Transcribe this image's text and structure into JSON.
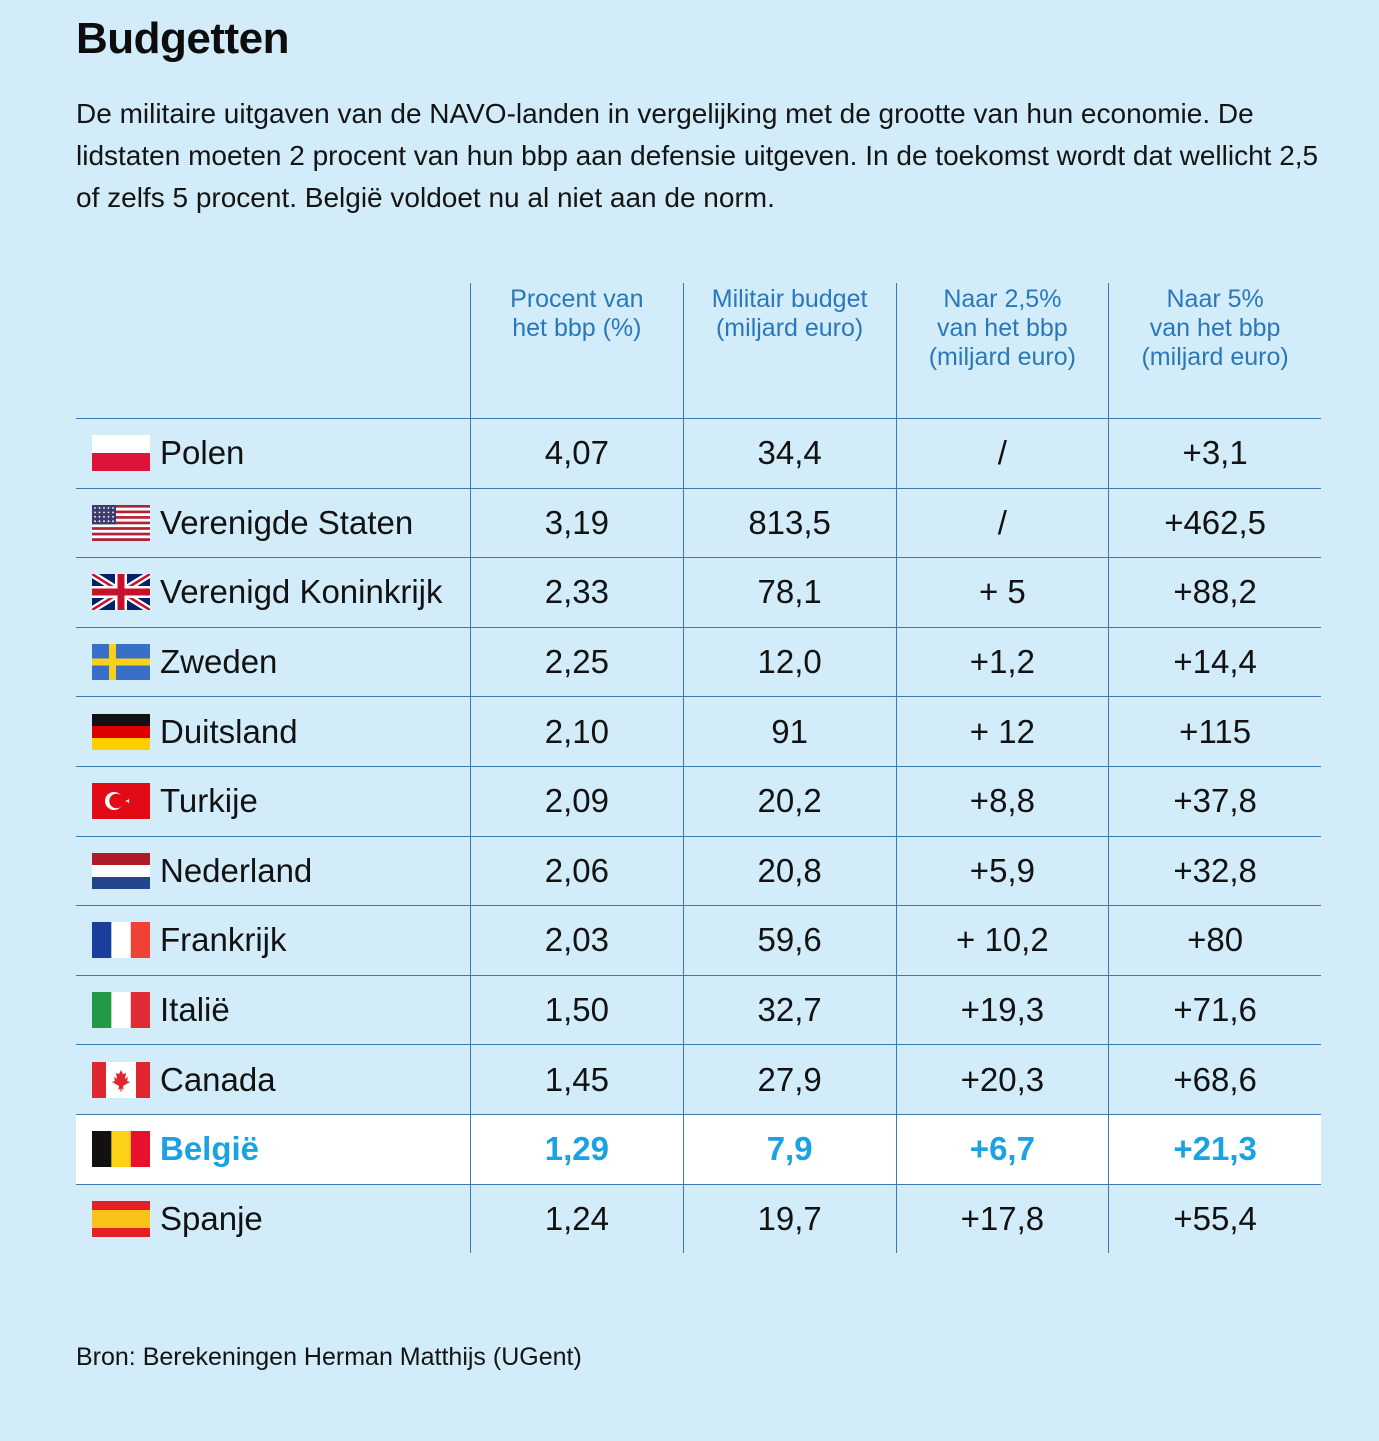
{
  "title": "Budgetten",
  "subtitle": "De militaire uitgaven van de NAVO-landen in vergelijking met de grootte van hun economie. De lidstaten moeten 2 procent van hun bbp aan defensie uitgeven. In de toekomst wordt dat wellicht 2,5 of zelfs 5 procent. België voldoet nu al niet aan de norm.",
  "source": "Bron: Berekeningen Herman Matthijs (UGent)",
  "colors": {
    "background": "#d3ecfa",
    "header_text": "#2a78b8",
    "grid": "#3c79ad",
    "highlight_text": "#1aa3e2",
    "highlight_row": "#ffffff"
  },
  "chart_data": {
    "type": "table",
    "columns": [
      {
        "lines": [
          "Procent van",
          "het bbp (%)"
        ]
      },
      {
        "lines": [
          "Militair budget",
          "(miljard euro)"
        ]
      },
      {
        "lines": [
          "Naar 2,5%",
          "van het bbp",
          "(miljard euro)"
        ]
      },
      {
        "lines": [
          "Naar 5%",
          "van het bbp",
          "(miljard euro)"
        ]
      }
    ],
    "rows": [
      {
        "country": "Polen",
        "flag": "poland-flag",
        "values": [
          "4,07",
          "34,4",
          "/",
          "+3,1"
        ]
      },
      {
        "country": "Verenigde Staten",
        "flag": "usa-flag",
        "values": [
          "3,19",
          "813,5",
          "/",
          "+462,5"
        ]
      },
      {
        "country": "Verenigd Koninkrijk",
        "flag": "uk-flag",
        "values": [
          "2,33",
          "78,1",
          "+ 5",
          "+88,2"
        ]
      },
      {
        "country": "Zweden",
        "flag": "sweden-flag",
        "values": [
          "2,25",
          "12,0",
          "+1,2",
          "+14,4"
        ]
      },
      {
        "country": "Duitsland",
        "flag": "germany-flag",
        "values": [
          "2,10",
          "91",
          "+ 12",
          "+115"
        ]
      },
      {
        "country": "Turkije",
        "flag": "turkey-flag",
        "values": [
          "2,09",
          "20,2",
          "+8,8",
          "+37,8"
        ]
      },
      {
        "country": "Nederland",
        "flag": "netherlands-flag",
        "values": [
          "2,06",
          "20,8",
          "+5,9",
          "+32,8"
        ]
      },
      {
        "country": "Frankrijk",
        "flag": "france-flag",
        "values": [
          "2,03",
          "59,6",
          "+ 10,2",
          "+80"
        ]
      },
      {
        "country": "Italië",
        "flag": "italy-flag",
        "values": [
          "1,50",
          "32,7",
          "+19,3",
          "+71,6"
        ]
      },
      {
        "country": "Canada",
        "flag": "canada-flag",
        "values": [
          "1,45",
          "27,9",
          "+20,3",
          "+68,6"
        ]
      },
      {
        "country": "België",
        "flag": "belgium-flag",
        "highlight": true,
        "values": [
          "1,29",
          "7,9",
          "+6,7",
          "+21,3"
        ]
      },
      {
        "country": "Spanje",
        "flag": "spain-flag",
        "values": [
          "1,24",
          "19,7",
          "+17,8",
          "+55,4"
        ]
      }
    ]
  }
}
